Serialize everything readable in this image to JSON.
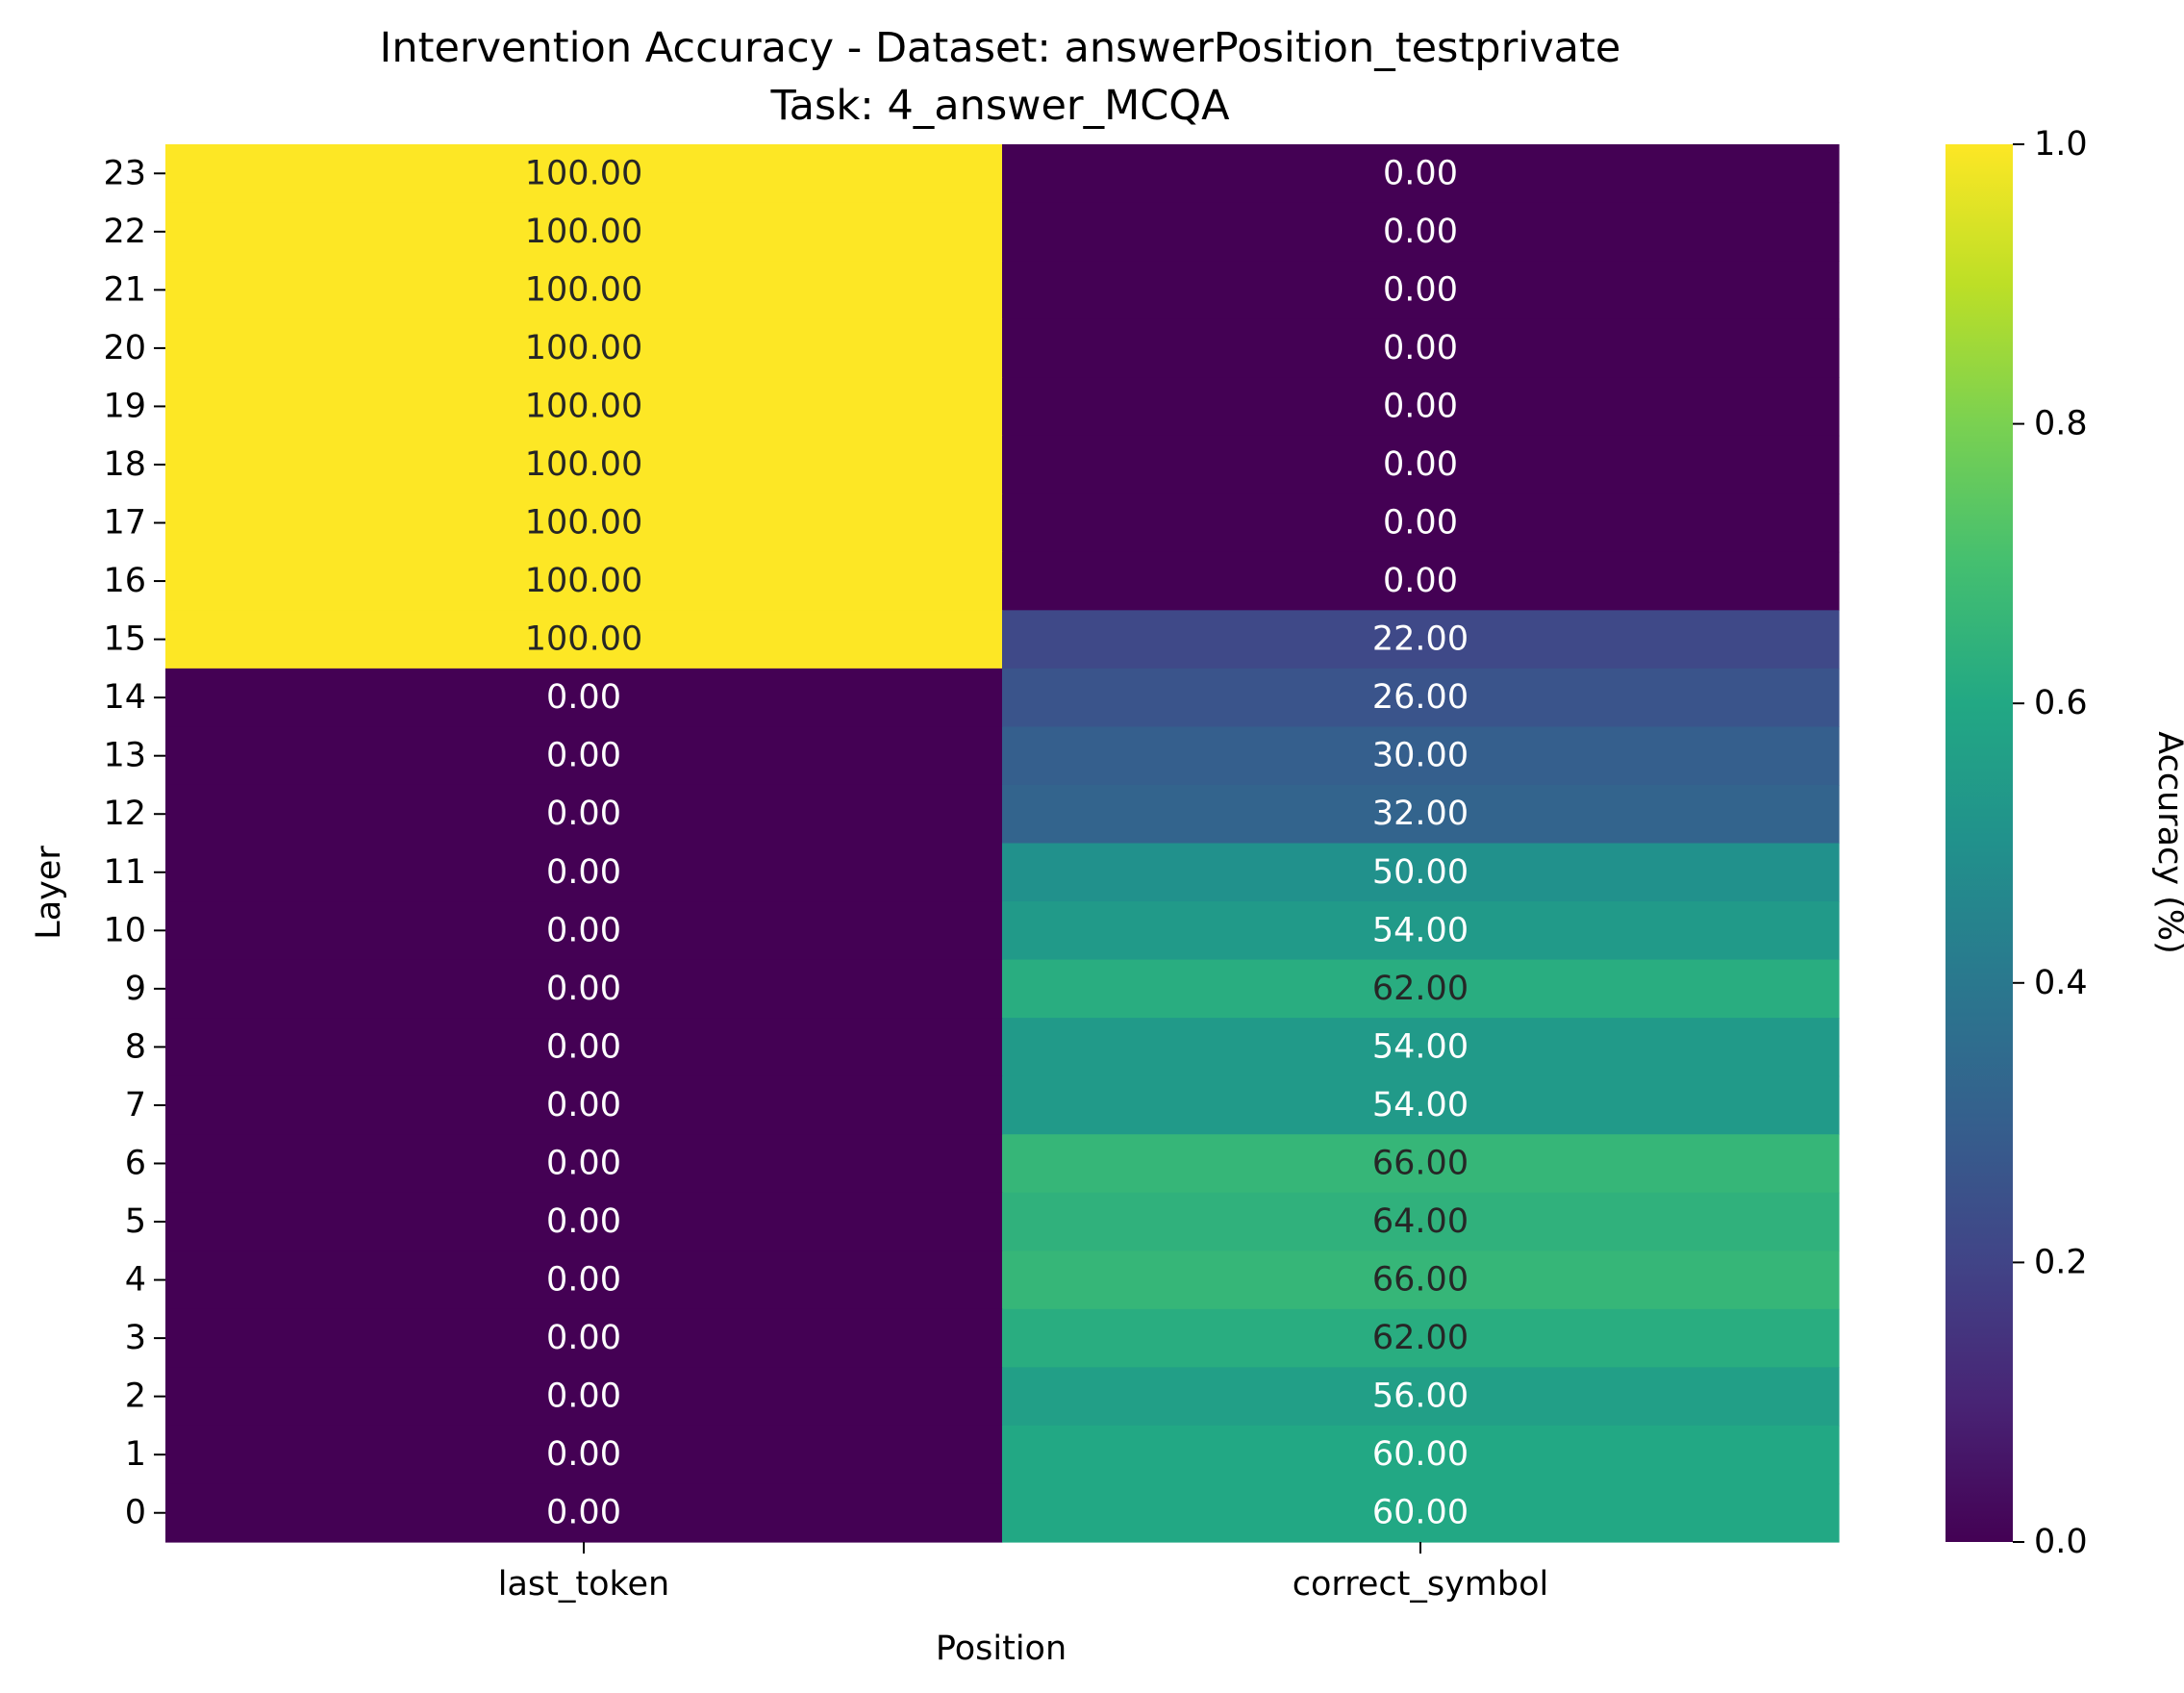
{
  "chart_data": {
    "type": "heatmap",
    "title": "Intervention Accuracy - Dataset: answerPosition_testprivate",
    "subtitle": "Task: 4_answer_MCQA",
    "xlabel": "Position",
    "ylabel": "Layer",
    "x_categories": [
      "last_token",
      "correct_symbol"
    ],
    "y_categories": [
      "23",
      "22",
      "21",
      "20",
      "19",
      "18",
      "17",
      "16",
      "15",
      "14",
      "13",
      "12",
      "11",
      "10",
      "9",
      "8",
      "7",
      "6",
      "5",
      "4",
      "3",
      "2",
      "1",
      "0"
    ],
    "values": [
      [
        1.0,
        0.0
      ],
      [
        1.0,
        0.0
      ],
      [
        1.0,
        0.0
      ],
      [
        1.0,
        0.0
      ],
      [
        1.0,
        0.0
      ],
      [
        1.0,
        0.0
      ],
      [
        1.0,
        0.0
      ],
      [
        1.0,
        0.0
      ],
      [
        1.0,
        0.22
      ],
      [
        0.0,
        0.26
      ],
      [
        0.0,
        0.3
      ],
      [
        0.0,
        0.32
      ],
      [
        0.0,
        0.5
      ],
      [
        0.0,
        0.54
      ],
      [
        0.0,
        0.62
      ],
      [
        0.0,
        0.54
      ],
      [
        0.0,
        0.54
      ],
      [
        0.0,
        0.66
      ],
      [
        0.0,
        0.64
      ],
      [
        0.0,
        0.66
      ],
      [
        0.0,
        0.62
      ],
      [
        0.0,
        0.56
      ],
      [
        0.0,
        0.6
      ],
      [
        0.0,
        0.6
      ]
    ],
    "annotations": [
      [
        "100.00",
        "0.00"
      ],
      [
        "100.00",
        "0.00"
      ],
      [
        "100.00",
        "0.00"
      ],
      [
        "100.00",
        "0.00"
      ],
      [
        "100.00",
        "0.00"
      ],
      [
        "100.00",
        "0.00"
      ],
      [
        "100.00",
        "0.00"
      ],
      [
        "100.00",
        "0.00"
      ],
      [
        "100.00",
        "22.00"
      ],
      [
        "0.00",
        "26.00"
      ],
      [
        "0.00",
        "30.00"
      ],
      [
        "0.00",
        "32.00"
      ],
      [
        "0.00",
        "50.00"
      ],
      [
        "0.00",
        "54.00"
      ],
      [
        "0.00",
        "62.00"
      ],
      [
        "0.00",
        "54.00"
      ],
      [
        "0.00",
        "54.00"
      ],
      [
        "0.00",
        "66.00"
      ],
      [
        "0.00",
        "64.00"
      ],
      [
        "0.00",
        "66.00"
      ],
      [
        "0.00",
        "62.00"
      ],
      [
        "0.00",
        "56.00"
      ],
      [
        "0.00",
        "60.00"
      ],
      [
        "0.00",
        "60.00"
      ]
    ],
    "colorbar": {
      "label": "Accuracy (%)",
      "range": [
        0.0,
        1.0
      ],
      "ticks": [
        "0.0",
        "0.2",
        "0.4",
        "0.6",
        "0.8",
        "1.0"
      ],
      "colormap": "viridis"
    }
  }
}
